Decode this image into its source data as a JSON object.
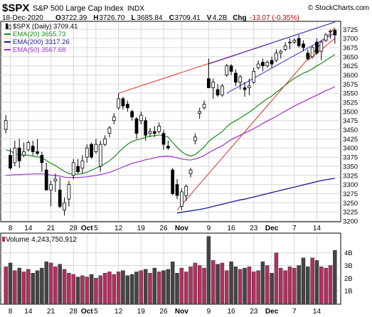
{
  "header": {
    "ticker": "$SPX",
    "name": "S&P 500 Large Cap Index",
    "exchange": "INDX",
    "watermark": "© StockCharts.com",
    "date": "18-Dec-2020",
    "ohlc": [
      {
        "label": "O",
        "value": "3722.39"
      },
      {
        "label": "H",
        "value": "3726.70"
      },
      {
        "label": "L",
        "value": "3685.84"
      },
      {
        "label": "C",
        "value": "3709.41"
      },
      {
        "label": "V",
        "value": "4.2B"
      }
    ],
    "chg_label": "Chg",
    "chg_value": "-13.07 (-0.35%)",
    "chg_color": "#cc0000"
  },
  "chart_data": [
    {
      "type": "candlestick",
      "ylim": [
        3200,
        3745
      ],
      "y_ticks": [
        3200,
        3225,
        3250,
        3275,
        3300,
        3325,
        3350,
        3375,
        3400,
        3425,
        3450,
        3475,
        3500,
        3525,
        3550,
        3575,
        3600,
        3625,
        3650,
        3675,
        3700,
        3725
      ],
      "x_tick_labels": [
        {
          "label": "8",
          "index": 1
        },
        {
          "label": "14",
          "index": 5
        },
        {
          "label": "21",
          "index": 10
        },
        {
          "label": "28",
          "index": 15
        },
        {
          "label": "Oct",
          "index": 18
        },
        {
          "label": "5",
          "index": 20
        },
        {
          "label": "12",
          "index": 25
        },
        {
          "label": "19",
          "index": 30
        },
        {
          "label": "26",
          "index": 35
        },
        {
          "label": "Nov",
          "index": 39
        },
        {
          "label": "9",
          "index": 45
        },
        {
          "label": "16",
          "index": 50
        },
        {
          "label": "23",
          "index": 55
        },
        {
          "label": "Dec",
          "index": 59
        },
        {
          "label": "7",
          "index": 64
        },
        {
          "label": "14",
          "index": 69
        }
      ],
      "legend": [
        {
          "name": "$SPX (Daily)",
          "value": "3709.41",
          "color": "#000000"
        },
        {
          "name": "EMA(20)",
          "value": "3655.73",
          "color": "#1a8a1a"
        },
        {
          "name": "EMA(200)",
          "value": "3317.26",
          "color": "#1a1a8a"
        },
        {
          "name": "EMA(50)",
          "value": "3567.68",
          "color": "#9933cc"
        }
      ],
      "colors": {
        "up": "#ffffff",
        "down": "#000000",
        "ema20": "#1a8a1a",
        "ema50": "#9933cc",
        "ema200": "#1a1a8a",
        "trend_red": "#e03030",
        "trend_blue": "#3030e0"
      },
      "candles": [
        {
          "o": 3451,
          "h": 3490,
          "l": 3440,
          "c": 3475
        },
        {
          "o": 3380,
          "h": 3400,
          "l": 3340,
          "c": 3345
        },
        {
          "o": 3360,
          "h": 3420,
          "l": 3350,
          "c": 3400
        },
        {
          "o": 3400,
          "h": 3425,
          "l": 3345,
          "c": 3365
        },
        {
          "o": 3380,
          "h": 3415,
          "l": 3375,
          "c": 3390
        },
        {
          "o": 3395,
          "h": 3420,
          "l": 3390,
          "c": 3415
        },
        {
          "o": 3405,
          "h": 3420,
          "l": 3380,
          "c": 3390
        },
        {
          "o": 3390,
          "h": 3425,
          "l": 3380,
          "c": 3385
        },
        {
          "o": 3380,
          "h": 3390,
          "l": 3335,
          "c": 3360
        },
        {
          "o": 3340,
          "h": 3360,
          "l": 3285,
          "c": 3285
        },
        {
          "o": 3285,
          "h": 3310,
          "l": 3240,
          "c": 3300
        },
        {
          "o": 3310,
          "h": 3330,
          "l": 3280,
          "c": 3315
        },
        {
          "o": 3285,
          "h": 3320,
          "l": 3235,
          "c": 3240
        },
        {
          "o": 3230,
          "h": 3265,
          "l": 3215,
          "c": 3250
        },
        {
          "o": 3260,
          "h": 3310,
          "l": 3240,
          "c": 3300
        },
        {
          "o": 3325,
          "h": 3370,
          "l": 3315,
          "c": 3360
        },
        {
          "o": 3350,
          "h": 3370,
          "l": 3330,
          "c": 3335
        },
        {
          "o": 3345,
          "h": 3380,
          "l": 3330,
          "c": 3365
        },
        {
          "o": 3375,
          "h": 3410,
          "l": 3360,
          "c": 3400
        },
        {
          "o": 3410,
          "h": 3415,
          "l": 3370,
          "c": 3375
        },
        {
          "o": 3390,
          "h": 3425,
          "l": 3385,
          "c": 3410
        },
        {
          "o": 3350,
          "h": 3420,
          "l": 3335,
          "c": 3410
        },
        {
          "o": 3410,
          "h": 3435,
          "l": 3405,
          "c": 3425
        },
        {
          "o": 3440,
          "h": 3460,
          "l": 3430,
          "c": 3455
        },
        {
          "o": 3475,
          "h": 3495,
          "l": 3465,
          "c": 3485
        },
        {
          "o": 3510,
          "h": 3550,
          "l": 3505,
          "c": 3535
        },
        {
          "o": 3535,
          "h": 3540,
          "l": 3505,
          "c": 3515
        },
        {
          "o": 3520,
          "h": 3530,
          "l": 3500,
          "c": 3510
        },
        {
          "o": 3500,
          "h": 3505,
          "l": 3475,
          "c": 3485
        },
        {
          "o": 3480,
          "h": 3485,
          "l": 3425,
          "c": 3440
        },
        {
          "o": 3475,
          "h": 3500,
          "l": 3465,
          "c": 3490
        },
        {
          "o": 3475,
          "h": 3485,
          "l": 3420,
          "c": 3435
        },
        {
          "o": 3440,
          "h": 3455,
          "l": 3430,
          "c": 3445
        },
        {
          "o": 3445,
          "h": 3460,
          "l": 3430,
          "c": 3440
        },
        {
          "o": 3445,
          "h": 3470,
          "l": 3440,
          "c": 3460
        },
        {
          "o": 3440,
          "h": 3450,
          "l": 3395,
          "c": 3410
        },
        {
          "o": 3405,
          "h": 3420,
          "l": 3395,
          "c": 3400
        },
        {
          "o": 3340,
          "h": 3345,
          "l": 3270,
          "c": 3275
        },
        {
          "o": 3300,
          "h": 3315,
          "l": 3260,
          "c": 3270
        },
        {
          "o": 3240,
          "h": 3290,
          "l": 3230,
          "c": 3280
        },
        {
          "o": 3270,
          "h": 3300,
          "l": 3255,
          "c": 3295
        },
        {
          "o": 3330,
          "h": 3345,
          "l": 3320,
          "c": 3340
        },
        {
          "o": 3420,
          "h": 3440,
          "l": 3410,
          "c": 3430
        },
        {
          "o": 3495,
          "h": 3510,
          "l": 3480,
          "c": 3500
        },
        {
          "o": 3510,
          "h": 3530,
          "l": 3505,
          "c": 3520
        },
        {
          "o": 3590,
          "h": 3645,
          "l": 3565,
          "c": 3565
        },
        {
          "o": 3565,
          "h": 3590,
          "l": 3535,
          "c": 3580
        },
        {
          "o": 3560,
          "h": 3575,
          "l": 3540,
          "c": 3545
        },
        {
          "o": 3545,
          "h": 3575,
          "l": 3540,
          "c": 3570
        },
        {
          "o": 3600,
          "h": 3630,
          "l": 3595,
          "c": 3625
        },
        {
          "o": 3625,
          "h": 3630,
          "l": 3600,
          "c": 3610
        },
        {
          "o": 3605,
          "h": 3615,
          "l": 3570,
          "c": 3580
        },
        {
          "o": 3580,
          "h": 3600,
          "l": 3560,
          "c": 3595
        },
        {
          "o": 3565,
          "h": 3580,
          "l": 3540,
          "c": 3560
        },
        {
          "o": 3565,
          "h": 3590,
          "l": 3545,
          "c": 3570
        },
        {
          "o": 3580,
          "h": 3620,
          "l": 3575,
          "c": 3610
        },
        {
          "o": 3620,
          "h": 3640,
          "l": 3615,
          "c": 3630
        },
        {
          "o": 3635,
          "h": 3645,
          "l": 3610,
          "c": 3625
        },
        {
          "o": 3625,
          "h": 3640,
          "l": 3620,
          "c": 3635
        },
        {
          "o": 3640,
          "h": 3650,
          "l": 3620,
          "c": 3630
        },
        {
          "o": 3640,
          "h": 3670,
          "l": 3635,
          "c": 3660
        },
        {
          "o": 3660,
          "h": 3670,
          "l": 3645,
          "c": 3665
        },
        {
          "o": 3670,
          "h": 3690,
          "l": 3665,
          "c": 3680
        },
        {
          "o": 3690,
          "h": 3700,
          "l": 3670,
          "c": 3690
        },
        {
          "o": 3690,
          "h": 3700,
          "l": 3685,
          "c": 3695
        },
        {
          "o": 3700,
          "h": 3710,
          "l": 3675,
          "c": 3680
        },
        {
          "o": 3685,
          "h": 3695,
          "l": 3665,
          "c": 3675
        },
        {
          "o": 3660,
          "h": 3670,
          "l": 3640,
          "c": 3645
        },
        {
          "o": 3650,
          "h": 3680,
          "l": 3645,
          "c": 3675
        },
        {
          "o": 3690,
          "h": 3700,
          "l": 3655,
          "c": 3660
        },
        {
          "o": 3665,
          "h": 3695,
          "l": 3640,
          "c": 3690
        },
        {
          "o": 3695,
          "h": 3715,
          "l": 3690,
          "c": 3710
        },
        {
          "o": 3720,
          "h": 3725,
          "l": 3700,
          "c": 3720
        },
        {
          "o": 3722.39,
          "h": 3726.7,
          "l": 3685.84,
          "c": 3709.41
        }
      ],
      "ema20": [
        3395,
        3392,
        3385,
        3382,
        3381,
        3380,
        3378,
        3376,
        3373,
        3366,
        3358,
        3352,
        3344,
        3336,
        3330,
        3328,
        3328,
        3330,
        3334,
        3339,
        3345,
        3350,
        3357,
        3365,
        3375,
        3388,
        3400,
        3410,
        3418,
        3422,
        3425,
        3430,
        3432,
        3434,
        3436,
        3433,
        3430,
        3415,
        3402,
        3390,
        3382,
        3378,
        3382,
        3392,
        3403,
        3418,
        3428,
        3436,
        3445,
        3458,
        3468,
        3475,
        3482,
        3490,
        3498,
        3507,
        3517,
        3526,
        3535,
        3542,
        3553,
        3562,
        3572,
        3582,
        3591,
        3598,
        3605,
        3610,
        3617,
        3625,
        3632,
        3640,
        3648,
        3656
      ],
      "ema50": [
        3325,
        3326,
        3327,
        3327,
        3328,
        3328,
        3329,
        3329,
        3329,
        3328,
        3326,
        3325,
        3323,
        3320,
        3319,
        3319,
        3319,
        3320,
        3321,
        3323,
        3325,
        3327,
        3330,
        3333,
        3338,
        3343,
        3348,
        3353,
        3358,
        3361,
        3364,
        3368,
        3370,
        3373,
        3376,
        3377,
        3378,
        3376,
        3373,
        3370,
        3368,
        3367,
        3370,
        3374,
        3379,
        3387,
        3394,
        3400,
        3406,
        3415,
        3423,
        3429,
        3435,
        3441,
        3447,
        3453,
        3460,
        3467,
        3474,
        3480,
        3487,
        3494,
        3501,
        3508,
        3515,
        3521,
        3527,
        3533,
        3539,
        3545,
        3551,
        3557,
        3562,
        3568
      ],
      "ema200": [
        null,
        null,
        null,
        null,
        null,
        null,
        null,
        null,
        null,
        null,
        null,
        null,
        null,
        null,
        null,
        null,
        null,
        null,
        null,
        null,
        null,
        null,
        null,
        null,
        null,
        null,
        null,
        null,
        null,
        null,
        null,
        null,
        null,
        null,
        null,
        null,
        null,
        null,
        3222,
        3224,
        3226,
        3228,
        3230,
        3232,
        3234,
        3237,
        3240,
        3243,
        3246,
        3249,
        3252,
        3255,
        3258,
        3260,
        3263,
        3266,
        3269,
        3272,
        3275,
        3278,
        3281,
        3284,
        3287,
        3290,
        3293,
        3296,
        3299,
        3302,
        3305,
        3308,
        3311,
        3313,
        3315,
        3317
      ],
      "trendlines": [
        {
          "color": "red",
          "from": [
            25,
            3550
          ],
          "to": [
            73,
            3745
          ]
        },
        {
          "color": "red",
          "from": [
            38,
            3230
          ],
          "to": [
            73,
            3730
          ]
        },
        {
          "color": "red",
          "from": [
            67,
            3640
          ],
          "to": [
            73,
            3700
          ]
        },
        {
          "color": "blue",
          "from": [
            45,
            3630
          ],
          "to": [
            73,
            3745
          ]
        },
        {
          "color": "blue",
          "from": [
            49,
            3550
          ],
          "to": [
            73,
            3715
          ]
        }
      ]
    },
    {
      "type": "bar",
      "title": "Volume 4,243,750,912",
      "ylim": [
        0,
        5.5
      ],
      "y_tick_labels": [
        {
          "label": "1B",
          "value": 1
        },
        {
          "label": "2B",
          "value": 2
        },
        {
          "label": "3B",
          "value": 3
        },
        {
          "label": "4B",
          "value": 4
        }
      ],
      "up_color": "#b03060",
      "down_color": "#444444",
      "values": [
        2.9,
        3.2,
        2.6,
        2.8,
        2.5,
        2.7,
        2.4,
        2.6,
        2.8,
        3.3,
        3.2,
        2.9,
        3.1,
        2.7,
        2.4,
        2.3,
        2.1,
        2.2,
        2.1,
        2.3,
        2.0,
        2.2,
        2.4,
        2.5,
        2.3,
        2.5,
        2.6,
        2.2,
        2.3,
        2.5,
        2.6,
        2.7,
        2.4,
        2.8,
        2.5,
        2.6,
        2.7,
        3.3,
        2.4,
        2.8,
        2.5,
        2.9,
        3.2,
        3.0,
        2.8,
        5.3,
        3.4,
        3.1,
        3.2,
        2.6,
        3.3,
        2.9,
        2.7,
        2.8,
        2.9,
        2.5,
        2.6,
        3.3,
        3.0,
        2.4,
        4.0,
        2.8,
        2.6,
        2.9,
        2.8,
        3.0,
        3.6,
        2.9,
        3.6,
        3.4,
        2.9,
        2.8,
        3.0,
        4.2
      ],
      "directions": [
        "u",
        "d",
        "u",
        "d",
        "u",
        "u",
        "d",
        "d",
        "d",
        "d",
        "u",
        "u",
        "d",
        "u",
        "u",
        "u",
        "d",
        "u",
        "u",
        "d",
        "u",
        "u",
        "u",
        "u",
        "u",
        "u",
        "d",
        "d",
        "d",
        "d",
        "u",
        "d",
        "u",
        "d",
        "u",
        "d",
        "d",
        "d",
        "d",
        "u",
        "u",
        "u",
        "u",
        "u",
        "u",
        "d",
        "u",
        "d",
        "u",
        "u",
        "d",
        "d",
        "u",
        "d",
        "u",
        "u",
        "u",
        "d",
        "u",
        "d",
        "u",
        "u",
        "u",
        "u",
        "u",
        "d",
        "d",
        "d",
        "u",
        "d",
        "u",
        "u",
        "u",
        "d"
      ]
    }
  ]
}
